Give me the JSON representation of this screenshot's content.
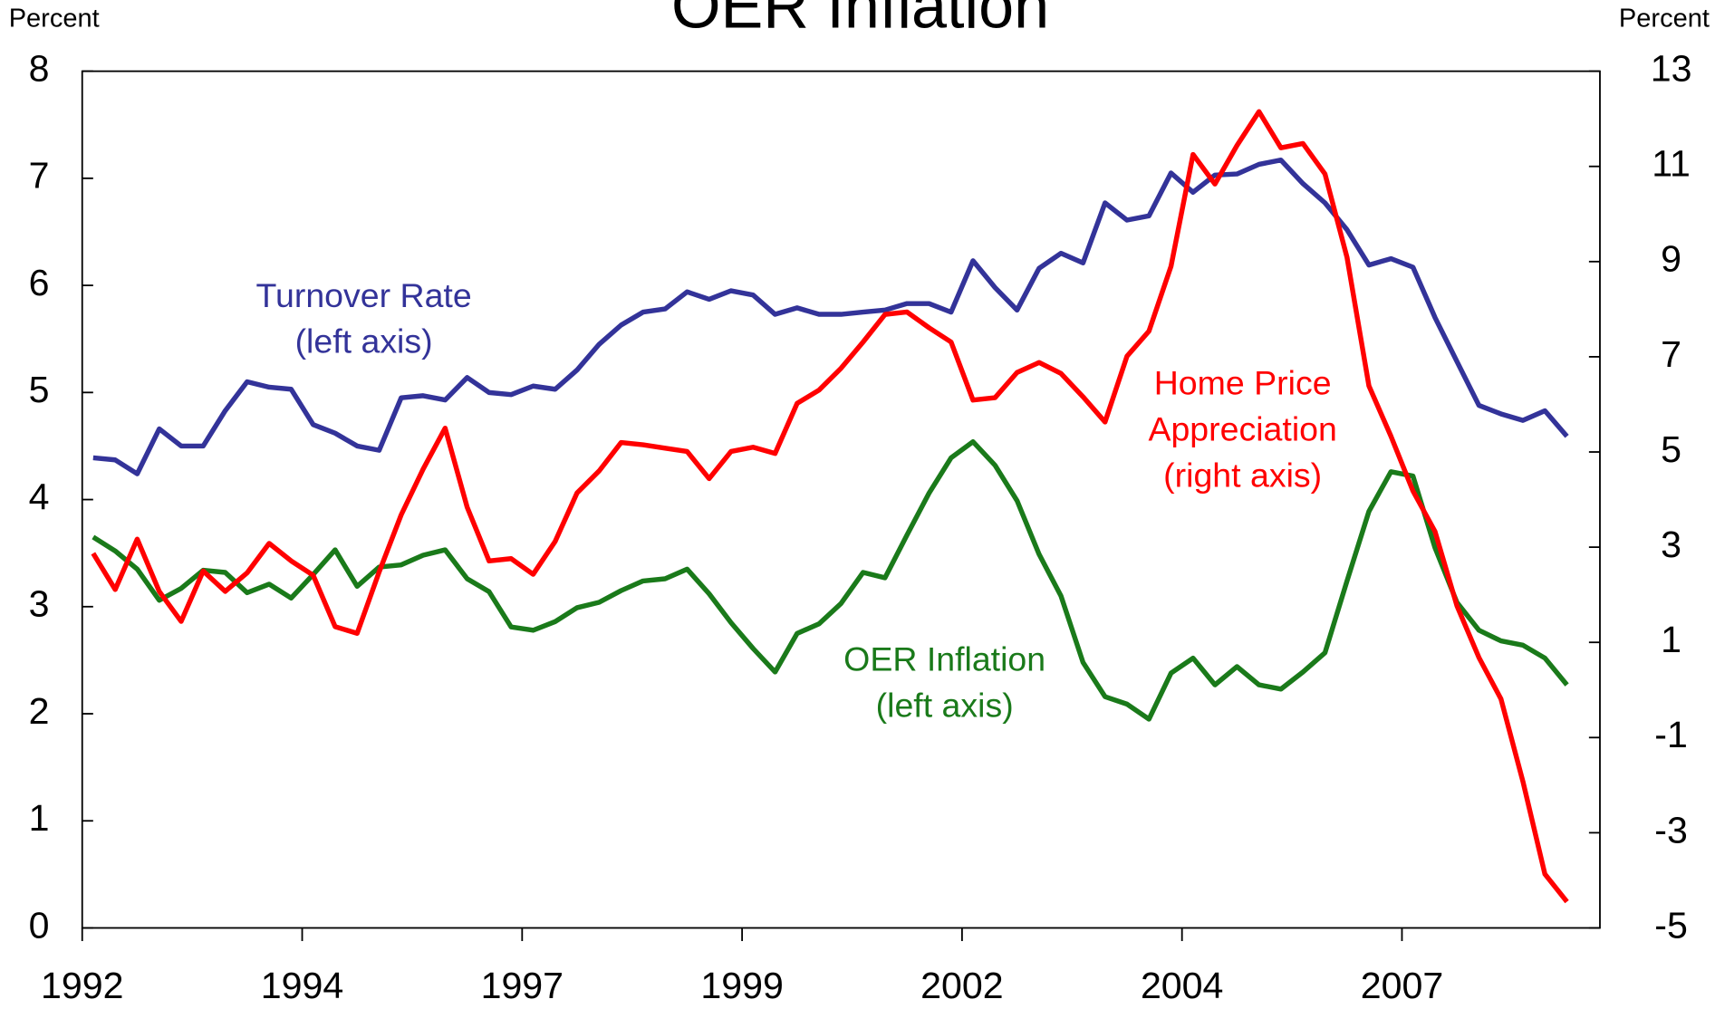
{
  "chart_data": {
    "type": "line",
    "title": "OER Inflation",
    "y_label": "Percent",
    "y2_label": "Percent",
    "x": [
      1992.125,
      1992.375,
      1992.625,
      1992.875,
      1993.125,
      1993.375,
      1993.625,
      1993.875,
      1994.125,
      1994.375,
      1994.625,
      1994.875,
      1995.125,
      1995.375,
      1995.625,
      1995.875,
      1996.125,
      1996.375,
      1996.625,
      1996.875,
      1997.125,
      1997.375,
      1997.625,
      1997.875,
      1998.125,
      1998.375,
      1998.625,
      1998.875,
      1999.125,
      1999.375,
      1999.625,
      1999.875,
      2000.125,
      2000.375,
      2000.625,
      2000.875,
      2001.125,
      2001.375,
      2001.625,
      2001.875,
      2002.125,
      2002.375,
      2002.625,
      2002.875,
      2003.125,
      2003.375,
      2003.625,
      2003.875,
      2004.125,
      2004.375,
      2004.625,
      2004.875,
      2005.125,
      2005.375,
      2005.625,
      2005.875,
      2006.125,
      2006.375,
      2006.625,
      2006.875,
      2007.125,
      2007.375,
      2007.625,
      2007.875,
      2008.125,
      2008.375,
      2008.625,
      2008.875
    ],
    "xlim": [
      1992,
      2009.25
    ],
    "xticks": [
      1992,
      {
        "value": 1994.5,
        "label": "1994"
      },
      1997,
      {
        "value": 1999.5,
        "label": "1999"
      },
      2002,
      {
        "value": 2004.5,
        "label": "2004"
      },
      2007
    ],
    "ylim": [
      0,
      8
    ],
    "yticks": [
      0,
      1,
      2,
      3,
      4,
      5,
      6,
      7,
      8
    ],
    "y2lim": [
      -5,
      13
    ],
    "y2ticks": [
      -5,
      -3,
      -1,
      1,
      3,
      5,
      7,
      9,
      11,
      13
    ],
    "series": [
      {
        "name": "Turnover Rate",
        "color": "#333399",
        "values": [
          4.39,
          4.37,
          4.24,
          4.66,
          4.5,
          4.5,
          4.83,
          5.1,
          5.05,
          5.03,
          4.7,
          4.62,
          4.5,
          4.46,
          4.95,
          4.97,
          4.93,
          5.14,
          5.0,
          4.98,
          5.06,
          5.03,
          5.21,
          5.45,
          5.63,
          5.75,
          5.78,
          5.94,
          5.87,
          5.95,
          5.91,
          5.73,
          5.79,
          5.73,
          5.73,
          5.75,
          5.77,
          5.83,
          5.83,
          5.75,
          6.23,
          5.98,
          5.77,
          6.16,
          6.3,
          6.21,
          6.77,
          6.61,
          6.65,
          7.05,
          6.87,
          7.03,
          7.04,
          7.13,
          7.17,
          6.95,
          6.77,
          6.52,
          6.19,
          6.25,
          6.17,
          5.7,
          5.29,
          4.88,
          4.8,
          4.74,
          4.83,
          4.59
        ]
      },
      {
        "name": "OER Inflation",
        "color": "#1a7a1a",
        "values": [
          3.65,
          3.52,
          3.35,
          3.06,
          3.17,
          3.34,
          3.32,
          3.13,
          3.21,
          3.08,
          3.3,
          3.53,
          3.19,
          3.37,
          3.39,
          3.48,
          3.53,
          3.26,
          3.14,
          2.81,
          2.78,
          2.86,
          2.99,
          3.04,
          3.15,
          3.24,
          3.26,
          3.35,
          3.12,
          2.85,
          2.61,
          2.39,
          2.75,
          2.84,
          3.03,
          3.32,
          3.27,
          3.67,
          4.06,
          4.39,
          4.54,
          4.32,
          3.99,
          3.49,
          3.1,
          2.48,
          2.16,
          2.09,
          1.95,
          2.38,
          2.52,
          2.27,
          2.44,
          2.27,
          2.23,
          2.39,
          2.57,
          3.24,
          3.89,
          4.26,
          4.22,
          3.55,
          3.04,
          2.78,
          2.68,
          2.64,
          2.52,
          2.27
        ]
      },
      {
        "name": "Home Price Appreciation",
        "color": "#ff0000",
        "axis": "y2",
        "values": [
          2.87,
          2.11,
          3.17,
          2.07,
          1.44,
          2.5,
          2.07,
          2.46,
          3.08,
          2.71,
          2.41,
          1.33,
          1.19,
          2.48,
          3.68,
          4.64,
          5.5,
          3.84,
          2.71,
          2.76,
          2.43,
          3.12,
          4.14,
          4.6,
          5.2,
          5.15,
          5.08,
          5.01,
          4.44,
          5.01,
          5.1,
          4.97,
          6.02,
          6.3,
          6.76,
          7.31,
          7.89,
          7.94,
          7.61,
          7.31,
          6.09,
          6.14,
          6.67,
          6.88,
          6.65,
          6.16,
          5.63,
          7.01,
          7.54,
          8.9,
          11.25,
          10.63,
          11.44,
          12.15,
          11.39,
          11.48,
          10.84,
          9.09,
          6.39,
          5.33,
          4.18,
          3.33,
          1.77,
          0.68,
          -0.19,
          -1.92,
          -3.87,
          -4.45
        ]
      }
    ],
    "annotations": [
      {
        "lines": [
          "Turnover Rate",
          "(left axis)"
        ],
        "color": "#333399"
      },
      {
        "lines": [
          "OER Inflation",
          "(left axis)"
        ],
        "color": "#1a7a1a"
      },
      {
        "lines": [
          "Home Price",
          "Appreciation",
          "(right axis)"
        ],
        "color": "#ff0000"
      }
    ]
  }
}
